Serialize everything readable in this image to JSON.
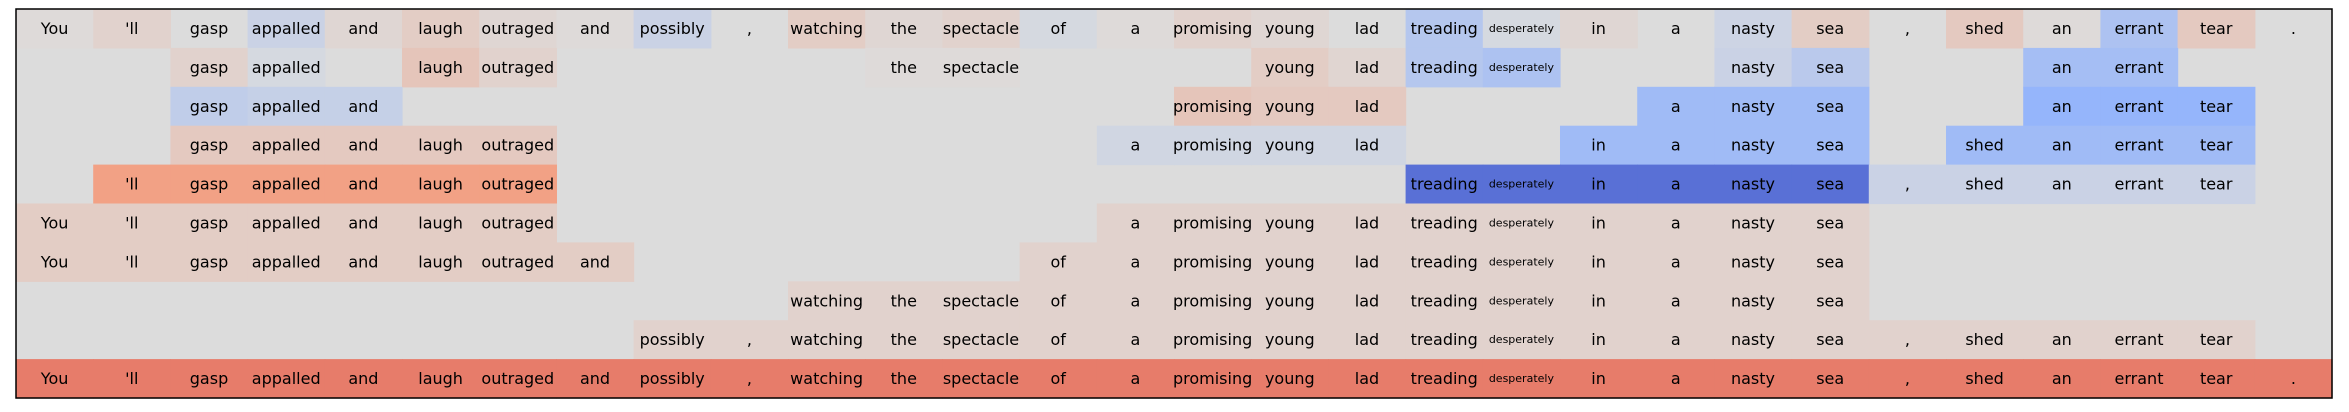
{
  "chart_data": {
    "type": "heatmap",
    "colormap": "coolwarm",
    "value_range": [
      -1,
      1
    ],
    "columns": [
      "You",
      "'ll",
      "gasp",
      "appalled",
      "and",
      "laugh",
      "outraged",
      "and",
      "possibly",
      ",",
      "watching",
      "the",
      "spectacle",
      "of",
      "a",
      "promising",
      "young",
      "lad",
      "treading",
      "desperately",
      "in",
      "a",
      "nasty",
      "sea",
      ",",
      "shed",
      "an",
      "errant",
      "tear",
      "."
    ],
    "rows": [
      {
        "present": [
          1,
          1,
          1,
          1,
          1,
          1,
          1,
          1,
          1,
          1,
          1,
          1,
          1,
          1,
          1,
          1,
          1,
          1,
          1,
          1,
          1,
          1,
          1,
          1,
          1,
          1,
          1,
          1,
          1,
          1
        ],
        "values": [
          0.02,
          0.08,
          0.0,
          -0.12,
          0.05,
          0.12,
          0.05,
          0.02,
          -0.12,
          0.0,
          0.12,
          0.05,
          0.08,
          -0.05,
          0.02,
          0.08,
          0.05,
          0.0,
          -0.25,
          -0.05,
          0.05,
          0.0,
          -0.1,
          0.12,
          0.0,
          0.15,
          0.02,
          -0.3,
          0.15,
          0.0
        ]
      },
      {
        "present": [
          0,
          0,
          1,
          1,
          0,
          1,
          1,
          0,
          0,
          0,
          0,
          1,
          1,
          0,
          0,
          0,
          1,
          1,
          1,
          1,
          0,
          0,
          1,
          1,
          0,
          0,
          1,
          1,
          0,
          0
        ],
        "values": [
          0,
          0,
          0.08,
          -0.05,
          0,
          0.18,
          0.08,
          0,
          0,
          0,
          0,
          0.02,
          0.02,
          0,
          0,
          0,
          0.12,
          0.06,
          -0.25,
          -0.3,
          0,
          0,
          -0.12,
          -0.22,
          0,
          0,
          -0.35,
          -0.35,
          0,
          0
        ]
      },
      {
        "present": [
          0,
          0,
          1,
          1,
          1,
          0,
          0,
          0,
          0,
          0,
          0,
          0,
          0,
          0,
          0,
          1,
          1,
          1,
          0,
          0,
          0,
          1,
          1,
          1,
          0,
          0,
          1,
          1,
          1,
          0
        ],
        "values": [
          0,
          0,
          -0.18,
          -0.15,
          -0.15,
          0,
          0,
          0,
          0,
          0,
          0,
          0,
          0,
          0,
          0,
          0.18,
          0.15,
          0.15,
          0,
          0,
          0,
          -0.38,
          -0.38,
          -0.38,
          0,
          0,
          -0.45,
          -0.45,
          -0.45,
          0
        ]
      },
      {
        "present": [
          0,
          0,
          1,
          1,
          1,
          1,
          1,
          0,
          0,
          0,
          0,
          0,
          0,
          0,
          1,
          1,
          1,
          1,
          0,
          0,
          1,
          1,
          1,
          1,
          0,
          1,
          1,
          1,
          1,
          0
        ],
        "values": [
          0,
          0,
          0.15,
          0.15,
          0.15,
          0.15,
          0.15,
          0,
          0,
          0,
          0,
          0,
          0,
          0,
          -0.08,
          -0.08,
          -0.08,
          -0.08,
          0,
          0,
          -0.38,
          -0.38,
          -0.38,
          -0.38,
          0,
          -0.38,
          -0.38,
          -0.38,
          -0.38,
          0
        ]
      },
      {
        "present": [
          0,
          1,
          1,
          1,
          1,
          1,
          1,
          0,
          0,
          0,
          0,
          0,
          0,
          0,
          0,
          0,
          0,
          0,
          1,
          1,
          1,
          1,
          1,
          1,
          1,
          1,
          1,
          1,
          1,
          0
        ],
        "values": [
          0,
          0.45,
          0.45,
          0.45,
          0.45,
          0.45,
          0.45,
          0,
          0,
          0,
          0,
          0,
          0,
          0,
          0,
          0,
          0,
          0,
          -0.82,
          -0.82,
          -0.82,
          -0.82,
          -0.82,
          -0.82,
          -0.12,
          -0.12,
          -0.12,
          -0.12,
          -0.12,
          0
        ]
      },
      {
        "present": [
          1,
          1,
          1,
          1,
          1,
          1,
          1,
          0,
          0,
          0,
          0,
          0,
          0,
          0,
          1,
          1,
          1,
          1,
          1,
          1,
          1,
          1,
          1,
          1,
          0,
          0,
          0,
          0,
          0,
          0
        ],
        "values": [
          0.12,
          0.12,
          0.12,
          0.12,
          0.12,
          0.12,
          0.12,
          0,
          0,
          0,
          0,
          0,
          0,
          0,
          0.08,
          0.08,
          0.08,
          0.08,
          0.08,
          0.08,
          0.08,
          0.08,
          0.08,
          0.08,
          0,
          0,
          0,
          0,
          0,
          0
        ]
      },
      {
        "present": [
          1,
          1,
          1,
          1,
          1,
          1,
          1,
          1,
          0,
          0,
          0,
          0,
          0,
          1,
          1,
          1,
          1,
          1,
          1,
          1,
          1,
          1,
          1,
          1,
          0,
          0,
          0,
          0,
          0,
          0
        ],
        "values": [
          0.12,
          0.12,
          0.12,
          0.12,
          0.12,
          0.12,
          0.12,
          0.12,
          0,
          0,
          0,
          0,
          0,
          0.08,
          0.08,
          0.08,
          0.08,
          0.08,
          0.08,
          0.08,
          0.08,
          0.08,
          0.08,
          0.08,
          0,
          0,
          0,
          0,
          0,
          0
        ]
      },
      {
        "present": [
          0,
          0,
          0,
          0,
          0,
          0,
          0,
          0,
          0,
          0,
          1,
          1,
          1,
          1,
          1,
          1,
          1,
          1,
          1,
          1,
          1,
          1,
          1,
          1,
          0,
          0,
          0,
          0,
          0,
          0
        ],
        "values": [
          0,
          0,
          0,
          0,
          0,
          0,
          0,
          0,
          0,
          0,
          0.08,
          0.08,
          0.08,
          0.08,
          0.08,
          0.08,
          0.08,
          0.08,
          0.08,
          0.08,
          0.08,
          0.08,
          0.08,
          0.08,
          0,
          0,
          0,
          0,
          0,
          0
        ]
      },
      {
        "present": [
          0,
          0,
          0,
          0,
          0,
          0,
          0,
          0,
          1,
          1,
          1,
          1,
          1,
          1,
          1,
          1,
          1,
          1,
          1,
          1,
          1,
          1,
          1,
          1,
          1,
          1,
          1,
          1,
          1,
          0
        ],
        "values": [
          0,
          0,
          0,
          0,
          0,
          0,
          0,
          0,
          0.08,
          0.08,
          0.08,
          0.08,
          0.08,
          0.08,
          0.08,
          0.08,
          0.08,
          0.08,
          0.08,
          0.08,
          0.08,
          0.08,
          0.08,
          0.08,
          0.08,
          0.08,
          0.08,
          0.08,
          0.08,
          0
        ]
      },
      {
        "present": [
          1,
          1,
          1,
          1,
          1,
          1,
          1,
          1,
          1,
          1,
          1,
          1,
          1,
          1,
          1,
          1,
          1,
          1,
          1,
          1,
          1,
          1,
          1,
          1,
          1,
          1,
          1,
          1,
          1,
          1
        ],
        "values": [
          0.6,
          0.6,
          0.6,
          0.6,
          0.6,
          0.6,
          0.6,
          0.6,
          0.6,
          0.6,
          0.6,
          0.6,
          0.6,
          0.6,
          0.6,
          0.6,
          0.6,
          0.6,
          0.6,
          0.6,
          0.6,
          0.6,
          0.6,
          0.6,
          0.6,
          0.6,
          0.6,
          0.6,
          0.6,
          0.6
        ]
      }
    ],
    "small_label_tokens": [
      "desperately"
    ],
    "background_color": "#dcdcdc",
    "border_color": "#000000"
  }
}
